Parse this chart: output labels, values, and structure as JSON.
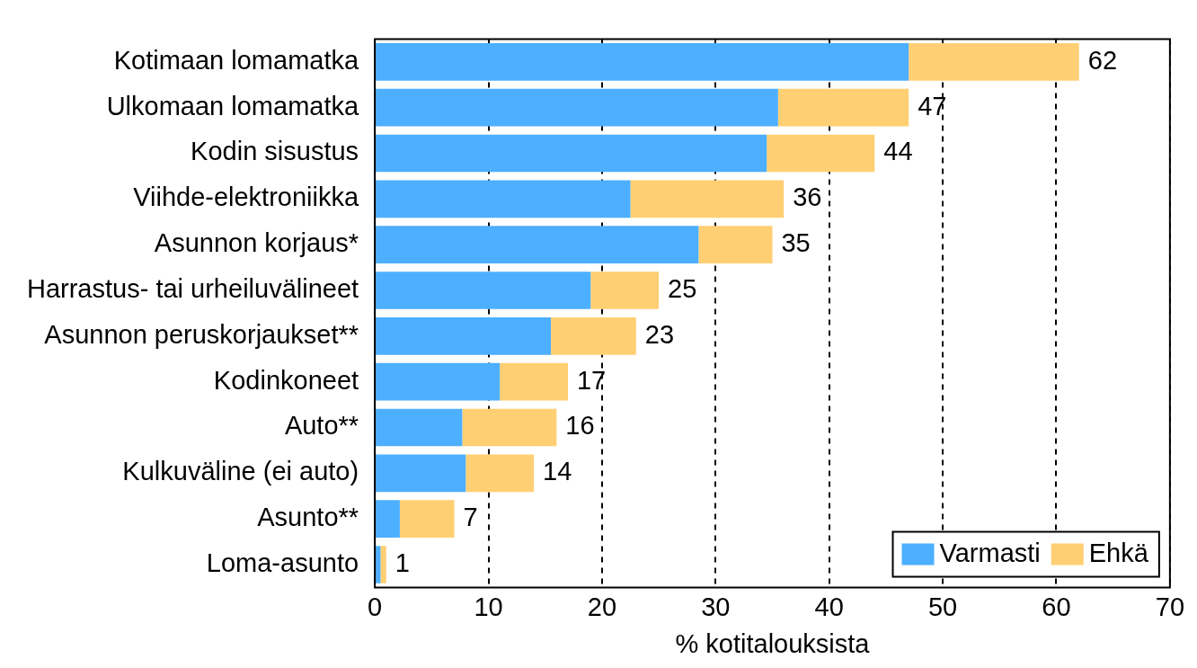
{
  "chart_data": {
    "type": "bar",
    "orientation": "horizontal",
    "stacked": true,
    "xlabel": "% kotitalouksista",
    "categories": [
      "Kotimaan lomamatka",
      "Ulkomaan lomamatka",
      "Kodin sisustus",
      "Viihde-elektroniikka",
      "Asunnon korjaus*",
      "Harrastus- tai urheiluvälineet",
      "Asunnon peruskorjaukset**",
      "Kodinkoneet",
      "Auto**",
      "Kulkuväline (ei auto)",
      "Asunto**",
      "Loma-asunto"
    ],
    "series": [
      {
        "name": "Varmasti",
        "color": "#4dafff",
        "values": [
          47,
          35.5,
          34.5,
          22.5,
          28.5,
          19,
          15.5,
          11,
          7.7,
          8,
          2.2,
          0.5
        ]
      },
      {
        "name": "Ehkä",
        "color": "#ffcf73",
        "values": [
          15,
          11.5,
          9.5,
          13.5,
          6.5,
          6,
          7.5,
          6,
          8.3,
          6,
          4.8,
          0.5
        ]
      }
    ],
    "totals": [
      "62",
      "47",
      "44",
      "36",
      "35",
      "25",
      "23",
      "17",
      "16",
      "14",
      "7",
      "1"
    ],
    "xlim": [
      0,
      70
    ],
    "xticks": [
      0,
      10,
      20,
      30,
      40,
      50,
      60,
      70
    ],
    "grid": "x",
    "legend": "bottom right"
  }
}
